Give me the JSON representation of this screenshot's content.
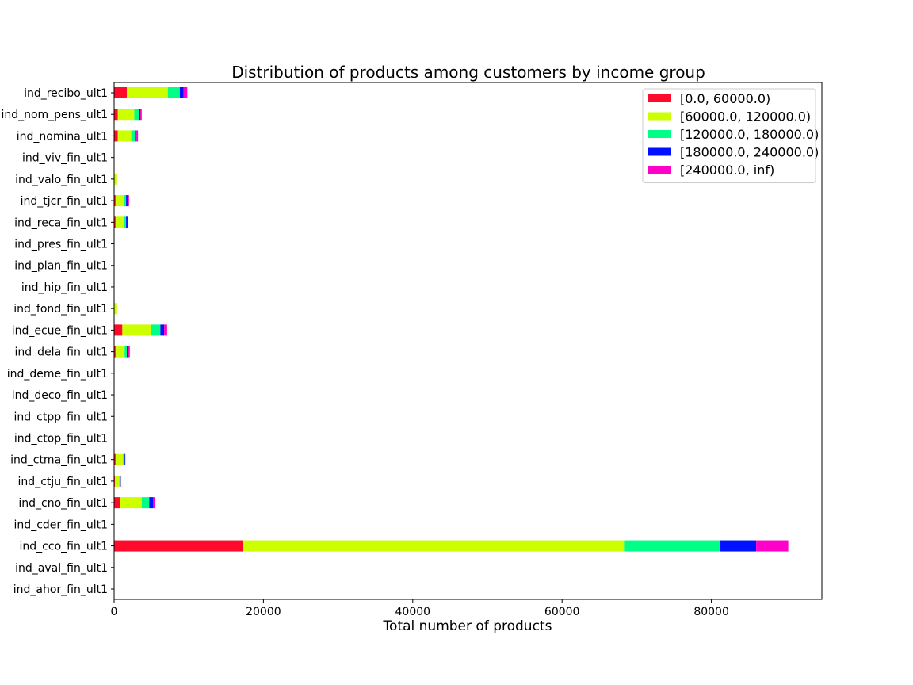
{
  "chart_data": {
    "type": "bar",
    "orientation": "horizontal",
    "stacked": true,
    "title": "Distribution of products among customers by income group",
    "xlabel": "Total number of products",
    "ylabel": "",
    "xlim": [
      0,
      94800
    ],
    "xticks": [
      0,
      20000,
      40000,
      60000,
      80000
    ],
    "xtick_labels": [
      "0",
      "20000",
      "40000",
      "60000",
      "80000"
    ],
    "grid": false,
    "legend_position": "top-right",
    "categories": [
      "ind_recibo_ult1",
      "ind_nom_pens_ult1",
      "ind_nomina_ult1",
      "ind_viv_fin_ult1",
      "ind_valo_fin_ult1",
      "ind_tjcr_fin_ult1",
      "ind_reca_fin_ult1",
      "ind_pres_fin_ult1",
      "ind_plan_fin_ult1",
      "ind_hip_fin_ult1",
      "ind_fond_fin_ult1",
      "ind_ecue_fin_ult1",
      "ind_dela_fin_ult1",
      "ind_deme_fin_ult1",
      "ind_deco_fin_ult1",
      "ind_ctpp_fin_ult1",
      "ind_ctop_fin_ult1",
      "ind_ctma_fin_ult1",
      "ind_ctju_fin_ult1",
      "ind_cno_fin_ult1",
      "ind_cder_fin_ult1",
      "ind_cco_fin_ult1",
      "ind_aval_fin_ult1",
      "ind_ahor_fin_ult1"
    ],
    "series": [
      {
        "name": "[0.0, 60000.0)",
        "color": "#ff0a2b",
        "values": [
          1700,
          500,
          500,
          0,
          0,
          200,
          200,
          0,
          0,
          0,
          0,
          1100,
          200,
          0,
          0,
          0,
          0,
          200,
          100,
          800,
          0,
          17200,
          0,
          0
        ]
      },
      {
        "name": "[60000.0, 120000.0)",
        "color": "#ccff00",
        "values": [
          5500,
          2200,
          1800,
          0,
          300,
          1100,
          1100,
          0,
          0,
          0,
          300,
          3800,
          1200,
          0,
          0,
          0,
          0,
          1000,
          600,
          2900,
          0,
          51100,
          0,
          0
        ]
      },
      {
        "name": "[120000.0, 180000.0)",
        "color": "#00ff87",
        "values": [
          1600,
          600,
          500,
          0,
          0,
          300,
          300,
          0,
          0,
          0,
          0,
          1300,
          300,
          0,
          0,
          0,
          0,
          200,
          100,
          1000,
          0,
          12900,
          0,
          0
        ]
      },
      {
        "name": "[180000.0, 240000.0)",
        "color": "#0011ff",
        "values": [
          500,
          200,
          200,
          0,
          0,
          200,
          200,
          0,
          0,
          0,
          0,
          500,
          200,
          0,
          0,
          0,
          0,
          100,
          100,
          500,
          0,
          4800,
          0,
          0
        ]
      },
      {
        "name": "[240000.0, inf)",
        "color": "#ff00c8",
        "values": [
          500,
          200,
          200,
          0,
          0,
          200,
          0,
          0,
          0,
          0,
          0,
          400,
          200,
          0,
          0,
          0,
          0,
          0,
          0,
          300,
          0,
          4300,
          0,
          0
        ]
      }
    ]
  }
}
